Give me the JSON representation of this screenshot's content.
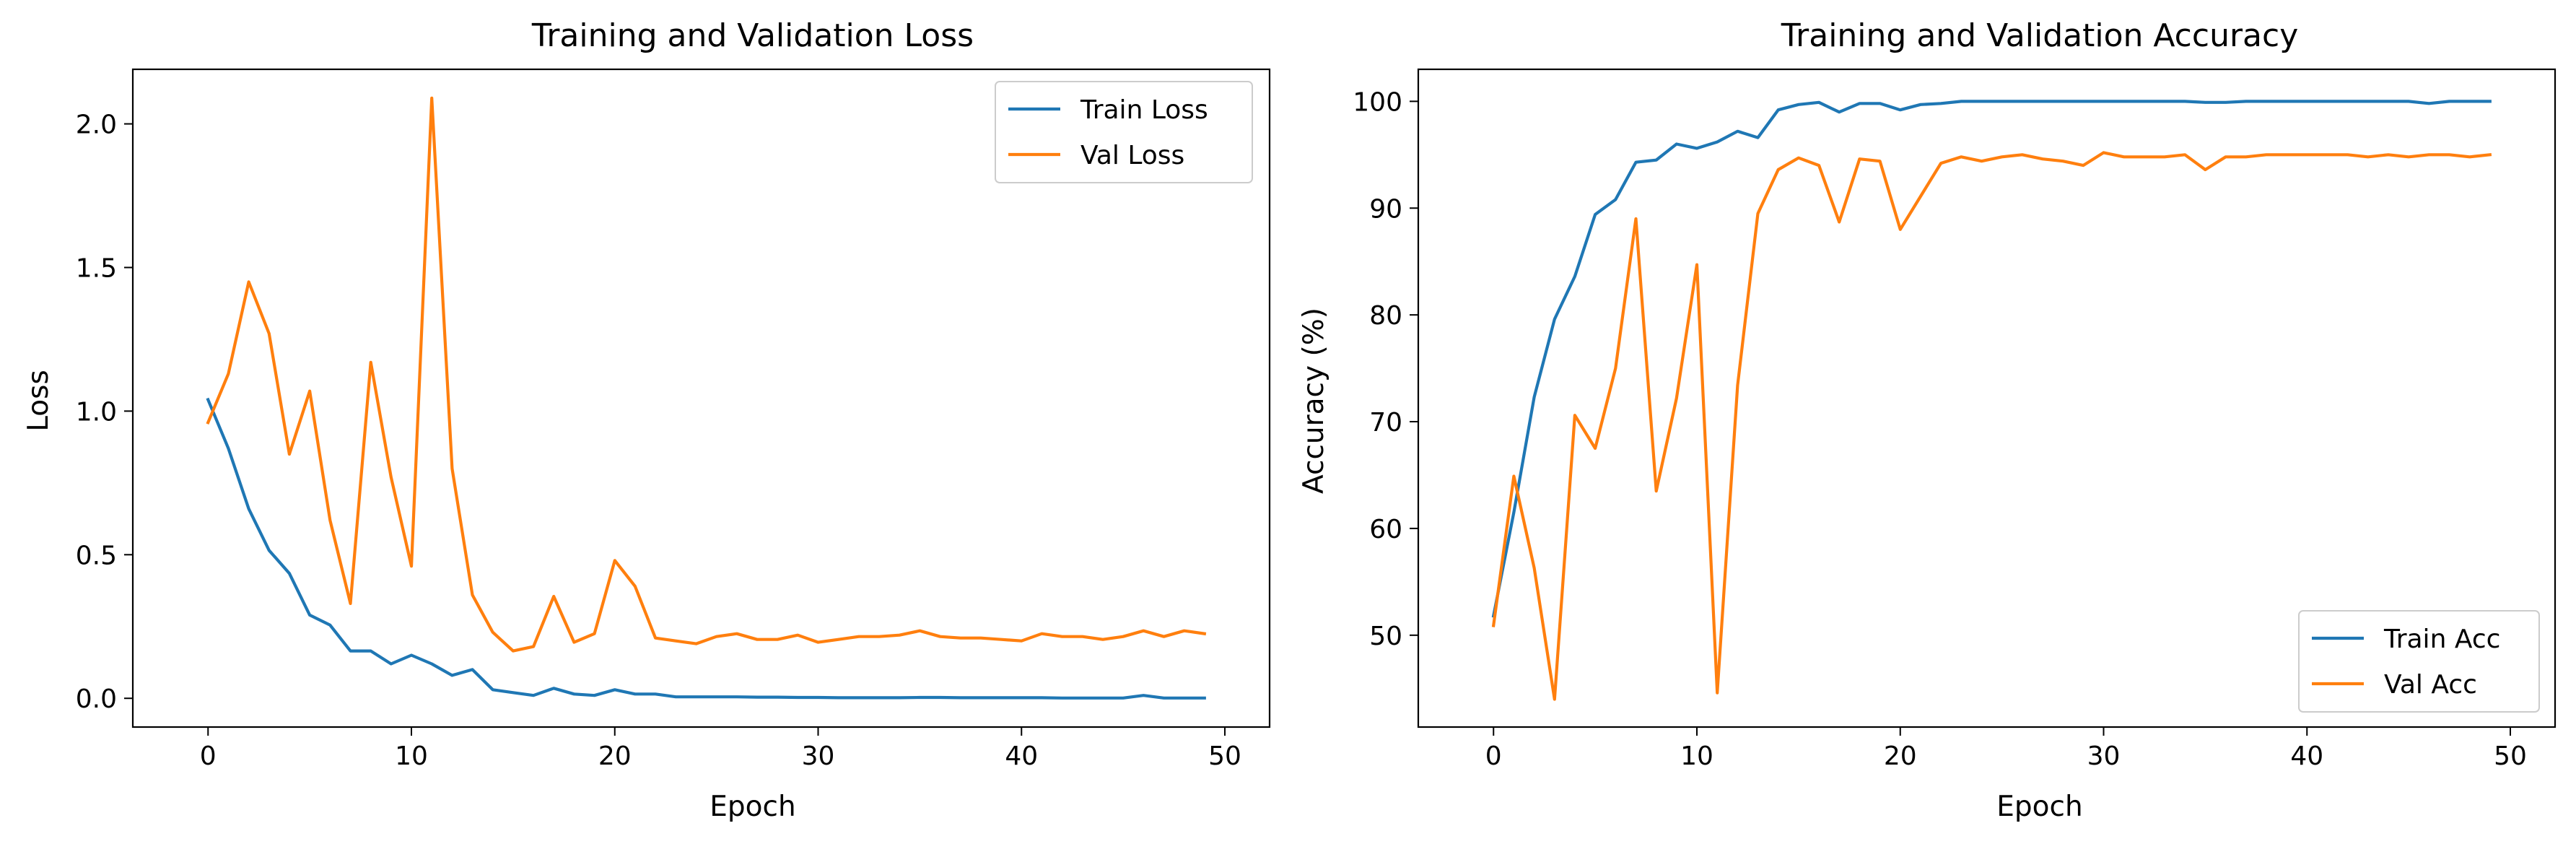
{
  "chart_data": [
    {
      "type": "line",
      "title": "Training and Validation Loss",
      "xlabel": "Epoch",
      "ylabel": "Loss",
      "xlim": [
        -3.7,
        52.2
      ],
      "ylim": [
        -0.1,
        2.19
      ],
      "xticks": [
        0,
        10,
        20,
        30,
        40,
        50
      ],
      "xtick_labels": [
        "0",
        "10",
        "20",
        "30",
        "40",
        "50"
      ],
      "yticks": [
        0.0,
        0.5,
        1.0,
        1.5,
        2.0
      ],
      "ytick_labels": [
        "0.0",
        "0.5",
        "1.0",
        "1.5",
        "2.0"
      ],
      "grid": false,
      "legend_position": "top-right",
      "x": [
        0,
        1,
        2,
        3,
        4,
        5,
        6,
        7,
        8,
        9,
        10,
        11,
        12,
        13,
        14,
        15,
        16,
        17,
        18,
        19,
        20,
        21,
        22,
        23,
        24,
        25,
        26,
        27,
        28,
        29,
        30,
        31,
        32,
        33,
        34,
        35,
        36,
        37,
        38,
        39,
        40,
        41,
        42,
        43,
        44,
        45,
        46,
        47,
        48,
        49
      ],
      "series": [
        {
          "name": "Train Loss",
          "color": "#1f77b4",
          "values": [
            1.04,
            0.87,
            0.66,
            0.515,
            0.435,
            0.29,
            0.255,
            0.165,
            0.165,
            0.12,
            0.15,
            0.12,
            0.08,
            0.1,
            0.03,
            0.02,
            0.01,
            0.035,
            0.015,
            0.01,
            0.03,
            0.015,
            0.015,
            0.005,
            0.005,
            0.005,
            0.005,
            0.004,
            0.004,
            0.003,
            0.003,
            0.002,
            0.002,
            0.002,
            0.002,
            0.003,
            0.003,
            0.002,
            0.002,
            0.002,
            0.002,
            0.002,
            0.001,
            0.001,
            0.001,
            0.001,
            0.01,
            0.001,
            0.001,
            0.001
          ]
        },
        {
          "name": "Val Loss",
          "color": "#ff7f0e",
          "values": [
            0.96,
            1.13,
            1.45,
            1.27,
            0.85,
            1.07,
            0.62,
            0.33,
            1.17,
            0.77,
            0.46,
            2.09,
            0.8,
            0.36,
            0.23,
            0.165,
            0.18,
            0.355,
            0.195,
            0.225,
            0.48,
            0.39,
            0.21,
            0.2,
            0.19,
            0.215,
            0.225,
            0.205,
            0.205,
            0.22,
            0.195,
            0.205,
            0.215,
            0.215,
            0.22,
            0.235,
            0.215,
            0.21,
            0.21,
            0.205,
            0.2,
            0.225,
            0.215,
            0.215,
            0.205,
            0.215,
            0.235,
            0.215,
            0.235,
            0.225
          ]
        }
      ]
    },
    {
      "type": "line",
      "title": "Training and Validation Accuracy",
      "xlabel": "Epoch",
      "ylabel": "Accuracy (%)",
      "xlim": [
        -3.7,
        52.2
      ],
      "ylim": [
        41.4,
        103.0
      ],
      "xticks": [
        0,
        10,
        20,
        30,
        40,
        50
      ],
      "xtick_labels": [
        "0",
        "10",
        "20",
        "30",
        "40",
        "50"
      ],
      "yticks": [
        50,
        60,
        70,
        80,
        90,
        100
      ],
      "ytick_labels": [
        "50",
        "60",
        "70",
        "80",
        "90",
        "100"
      ],
      "grid": false,
      "legend_position": "bottom-right",
      "x": [
        0,
        1,
        2,
        3,
        4,
        5,
        6,
        7,
        8,
        9,
        10,
        11,
        12,
        13,
        14,
        15,
        16,
        17,
        18,
        19,
        20,
        21,
        22,
        23,
        24,
        25,
        26,
        27,
        28,
        29,
        30,
        31,
        32,
        33,
        34,
        35,
        36,
        37,
        38,
        39,
        40,
        41,
        42,
        43,
        44,
        45,
        46,
        47,
        48,
        49
      ],
      "series": [
        {
          "name": "Train Acc",
          "color": "#1f77b4",
          "values": [
            51.8,
            61.5,
            72.3,
            79.6,
            83.6,
            89.4,
            90.8,
            94.3,
            94.5,
            96.0,
            95.6,
            96.2,
            97.2,
            96.6,
            99.2,
            99.7,
            99.9,
            99.0,
            99.8,
            99.8,
            99.2,
            99.7,
            99.8,
            100,
            100,
            100,
            100,
            100,
            100,
            100,
            100,
            100,
            100,
            100,
            100,
            99.9,
            99.9,
            100,
            100,
            100,
            100,
            100,
            100,
            100,
            100,
            100,
            99.8,
            100,
            100,
            100
          ]
        },
        {
          "name": "Val Acc",
          "color": "#ff7f0e",
          "values": [
            50.9,
            64.9,
            56.3,
            44.0,
            70.6,
            67.5,
            75.0,
            89.0,
            63.5,
            72.2,
            84.7,
            44.6,
            73.4,
            89.5,
            93.6,
            94.7,
            94.0,
            88.7,
            94.6,
            94.4,
            88.0,
            91.1,
            94.2,
            94.8,
            94.4,
            94.8,
            95.0,
            94.6,
            94.4,
            94.0,
            95.2,
            94.8,
            94.8,
            94.8,
            95.0,
            93.6,
            94.8,
            94.8,
            95.0,
            95.0,
            95.0,
            95.0,
            95.0,
            94.8,
            95.0,
            94.8,
            95.0,
            95.0,
            94.8,
            95.0
          ]
        }
      ]
    }
  ]
}
